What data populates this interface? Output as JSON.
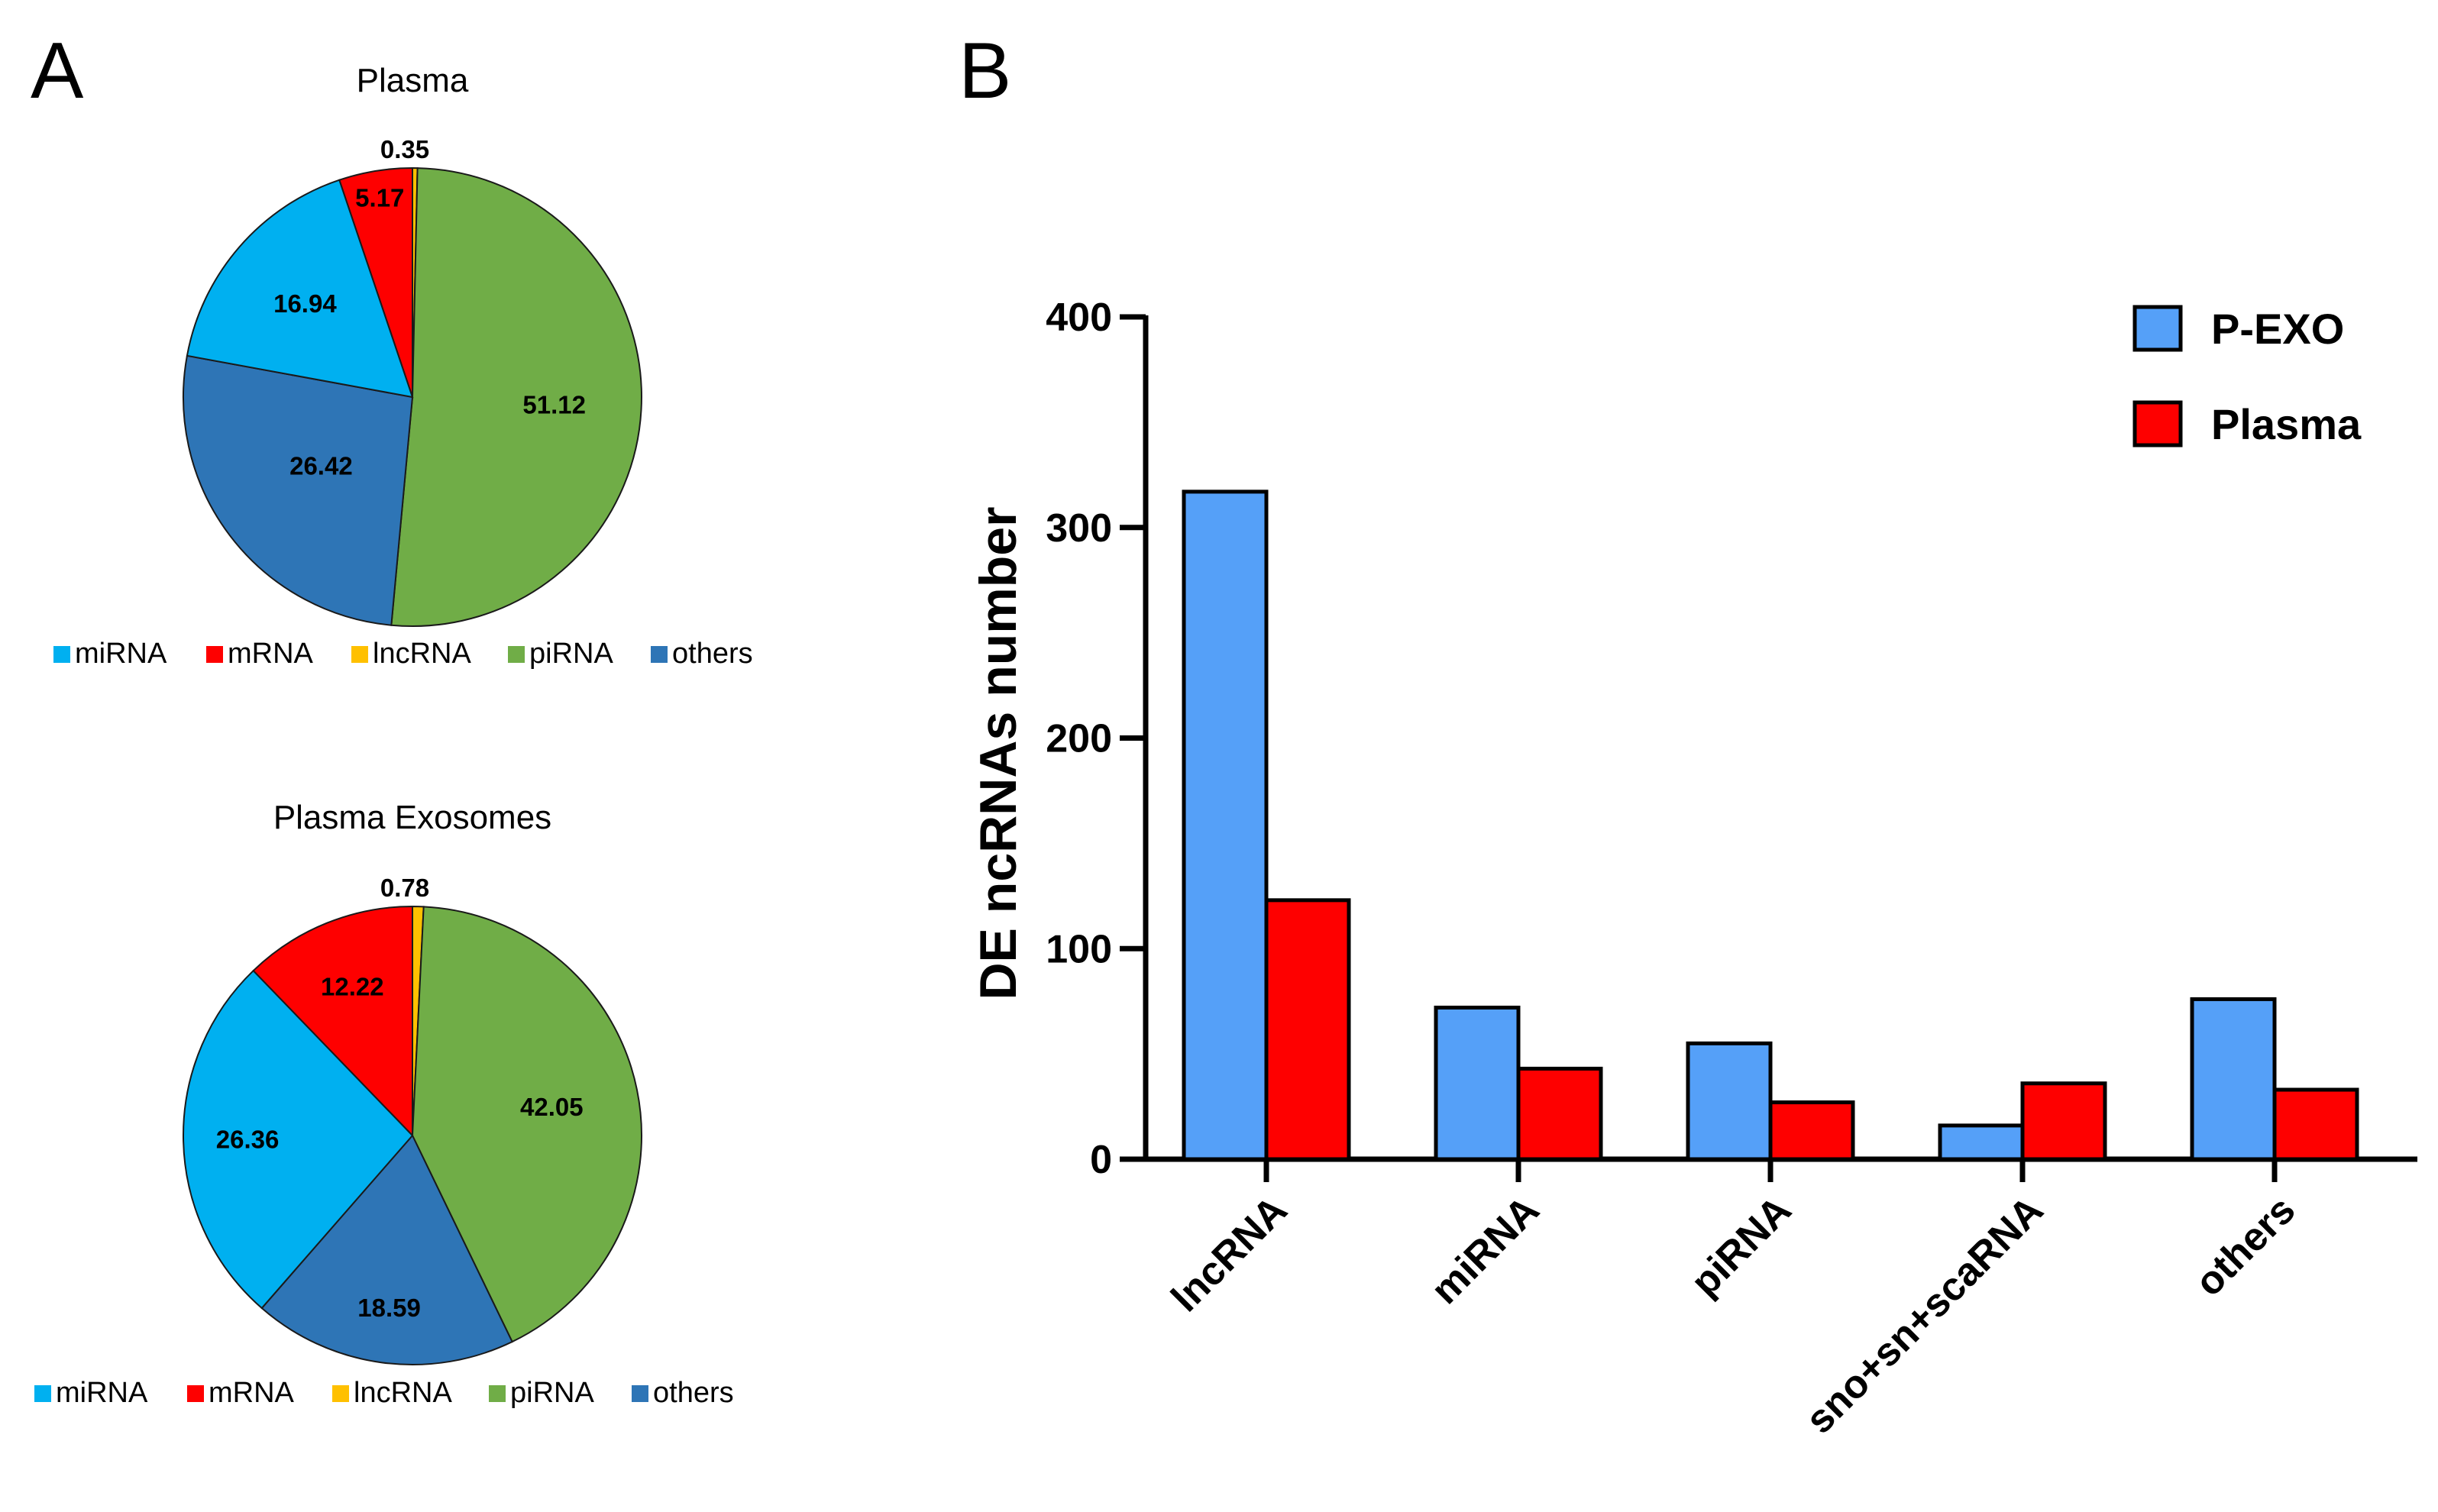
{
  "panels": {
    "a": "A",
    "b": "B"
  },
  "chart_data": [
    {
      "type": "pie",
      "title": "Plasma",
      "slices": [
        {
          "label": "mRNA",
          "value": 5.17,
          "text": "5.17",
          "color": "#fe0000"
        },
        {
          "label": "miRNA",
          "value": 16.94,
          "text": "16.94",
          "color": "#00b0f0"
        },
        {
          "label": "others",
          "value": 26.42,
          "text": "26.42",
          "color": "#2e75b6"
        },
        {
          "label": "piRNA",
          "value": 51.12,
          "text": "51.12",
          "color": "#70ad47"
        },
        {
          "label": "lncRNA",
          "value": 0.35,
          "text": "0.35",
          "color": "#ffc000"
        }
      ],
      "legend": [
        "miRNA",
        "mRNA",
        "lncRNA",
        "piRNA",
        "others"
      ]
    },
    {
      "type": "pie",
      "title": "Plasma Exosomes",
      "slices": [
        {
          "label": "mRNA",
          "value": 12.22,
          "text": "12.22",
          "color": "#fe0000"
        },
        {
          "label": "miRNA",
          "value": 26.36,
          "text": "26.36",
          "color": "#00b0f0"
        },
        {
          "label": "others",
          "value": 18.59,
          "text": "18.59",
          "color": "#2e75b6"
        },
        {
          "label": "piRNA",
          "value": 42.05,
          "text": "42.05",
          "color": "#70ad47"
        },
        {
          "label": "lncRNA",
          "value": 0.78,
          "text": "0.78",
          "color": "#ffc000"
        }
      ],
      "legend": [
        "miRNA",
        "mRNA",
        "lncRNA",
        "piRNA",
        "others"
      ]
    },
    {
      "type": "bar",
      "categories": [
        "lncRNA",
        "miRNA",
        "piRNA",
        "sno+sn+scaRNA",
        "others"
      ],
      "series": [
        {
          "name": "P-EXO",
          "values": [
            317,
            72,
            55,
            16,
            76
          ],
          "color": "#55a0f8"
        },
        {
          "name": "Plasma",
          "values": [
            123,
            43,
            27,
            36,
            33
          ],
          "color": "#fe0000"
        }
      ],
      "ylabel": "DE ncRNAs number",
      "ylim": [
        0,
        400
      ],
      "yticks": [
        0,
        100,
        200,
        300,
        400
      ]
    }
  ]
}
